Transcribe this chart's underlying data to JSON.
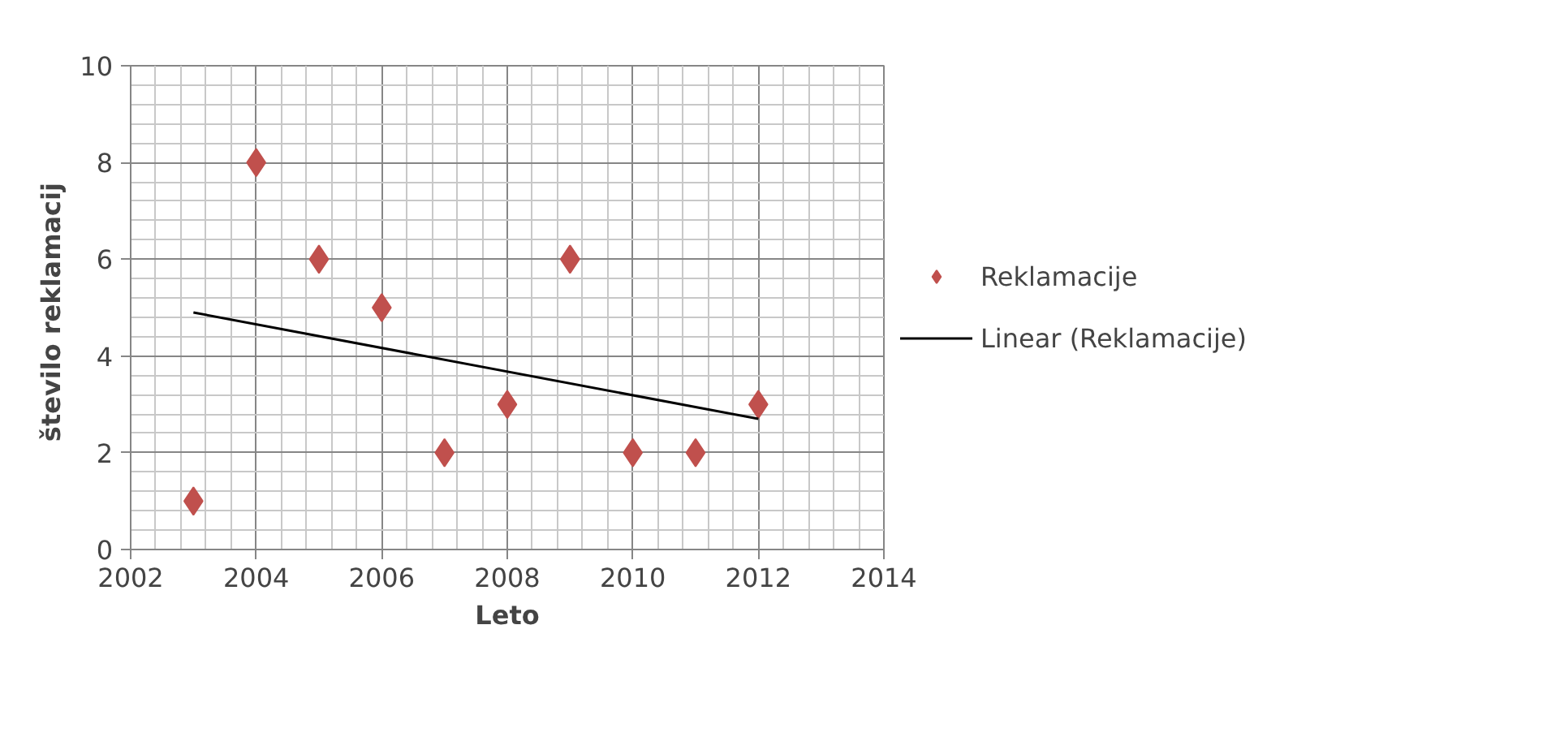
{
  "chart_data": {
    "type": "scatter",
    "xlabel": "Leto",
    "ylabel": "število  reklamacij",
    "x": [
      2003,
      2004,
      2005,
      2006,
      2007,
      2008,
      2009,
      2010,
      2011,
      2012
    ],
    "series": [
      {
        "name": "Reklamacije",
        "color": "#c0504d",
        "values": [
          1,
          8,
          6,
          5,
          2,
          3,
          6,
          2,
          2,
          3
        ],
        "marker": "diamond"
      },
      {
        "name": "Linear (Reklamacije)",
        "type": "line",
        "color": "#000000",
        "x": [
          2003,
          2012
        ],
        "values": [
          4.9,
          2.7
        ]
      }
    ],
    "xlim": [
      2002,
      2014
    ],
    "xticks": [
      2002,
      2004,
      2006,
      2008,
      2010,
      2012,
      2014
    ],
    "ylim": [
      0,
      10
    ],
    "yticks": [
      0,
      2,
      4,
      6,
      8,
      10
    ],
    "grid": true,
    "legend": "right"
  }
}
